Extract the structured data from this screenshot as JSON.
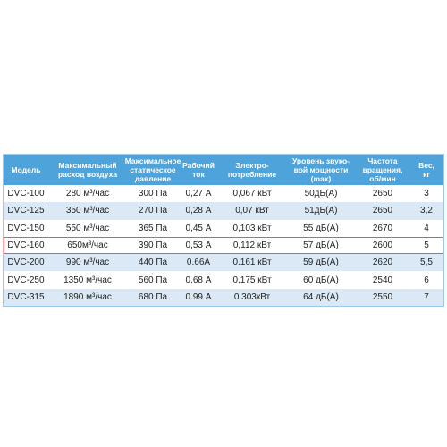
{
  "table": {
    "header": [
      [
        "Модель"
      ],
      [
        "Максимальный",
        "расход воздуха"
      ],
      [
        "Максимальное",
        "статическое",
        "давление"
      ],
      [
        "Рабочий",
        "ток"
      ],
      [
        "Электро-",
        "потребление"
      ],
      [
        "Уровень звуко-",
        "вой мощности",
        "(max)"
      ],
      [
        "Частота",
        "вращения,",
        "об/мин"
      ],
      [
        "Вес,",
        "кг"
      ]
    ],
    "rows": [
      [
        "DVC-100",
        "280 м³/час",
        "300 Па",
        "0,27 А",
        "0,067 кВт",
        "50дБ(А)",
        "2650",
        "3"
      ],
      [
        "DVC-125",
        "350 м³/час",
        "270 Па",
        "0,28 А",
        "0,07 кВт",
        "51дБ(А)",
        "2650",
        "3,2"
      ],
      [
        "DVC-150",
        "550 м³/час",
        "365 Па",
        "0,45 А",
        "0,103 кВт",
        "55 дБ(А)",
        "2670",
        "4"
      ],
      [
        "DVC-160",
        "650м³/час",
        "390 Па",
        "0,53 А",
        "0,112 кВт",
        "57 дБ(А)",
        "2600",
        "5"
      ],
      [
        "DVC-200",
        "990 м³/час",
        "440 Па",
        "0.66А",
        "0.161 кВт",
        "59 дБ(А)",
        "2620",
        "5,5"
      ],
      [
        "DVC-250",
        "1350 м³/час",
        "560 Па",
        "0,68 А",
        "0,175 кВт",
        "60 дБ(А)",
        "2540",
        "6"
      ],
      [
        "DVC-315",
        "1890 м³/час",
        "680 Па",
        "0.99 А",
        "0.303кВт",
        "64 дБ(А)",
        "2550",
        "7"
      ]
    ]
  }
}
